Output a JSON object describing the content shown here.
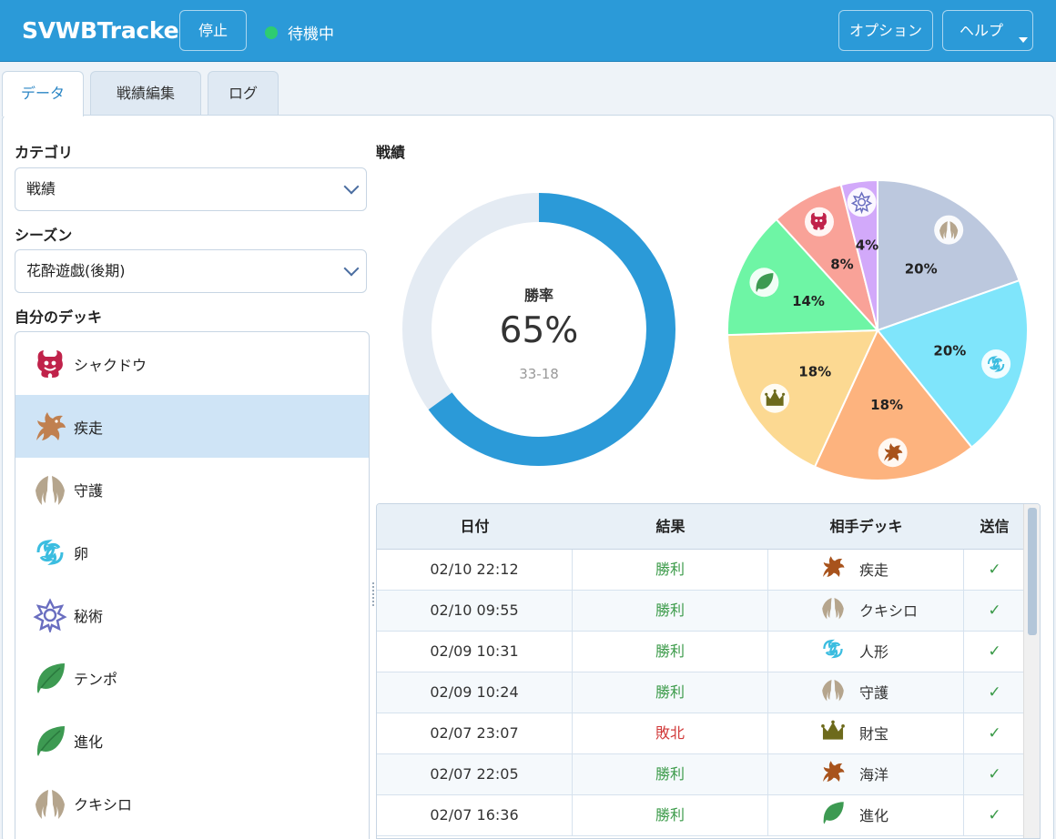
{
  "app": {
    "title": "SVWBTracker"
  },
  "header": {
    "stop_label": "停止",
    "status_text": "待機中",
    "options_label": "オプション",
    "help_label": "ヘルプ"
  },
  "tabs": [
    {
      "label": "データ",
      "active": true
    },
    {
      "label": "戦績編集",
      "active": false
    },
    {
      "label": "ログ",
      "active": false
    }
  ],
  "filters": {
    "category_label": "カテゴリ",
    "category_value": "戦績",
    "season_label": "シーズン",
    "season_value": "花酔遊戯(後期)",
    "my_deck_label": "自分のデッキ"
  },
  "decks": [
    {
      "name": "シャクドウ",
      "icon": "shadow-demon-icon",
      "selected": false
    },
    {
      "name": "疾走",
      "icon": "dragon-icon",
      "selected": true
    },
    {
      "name": "守護",
      "icon": "wings-icon",
      "selected": false
    },
    {
      "name": "卵",
      "icon": "swirl-icon",
      "selected": false
    },
    {
      "name": "秘術",
      "icon": "star-emblem-icon",
      "selected": false
    },
    {
      "name": "テンポ",
      "icon": "leaf-icon",
      "selected": false
    },
    {
      "name": "進化",
      "icon": "leaf-icon",
      "selected": false
    },
    {
      "name": "クキシロ",
      "icon": "wings-icon",
      "selected": false
    }
  ],
  "stats": {
    "section_label": "戦績",
    "winrate_label": "勝率",
    "winrate_text": "65%",
    "record_text": "33-18"
  },
  "chart_data": [
    {
      "type": "pie",
      "variant": "donut",
      "categories": [
        "win",
        "loss"
      ],
      "values": [
        65,
        35
      ],
      "colors": [
        "#2b9ad8",
        "#e4ebf3"
      ]
    },
    {
      "type": "pie",
      "categories": [
        "wings",
        "swirl",
        "dragon",
        "crown",
        "leaf",
        "demon",
        "star"
      ],
      "values": [
        20,
        20,
        18,
        18,
        14,
        8,
        4
      ],
      "labels": [
        "20%",
        "20%",
        "18%",
        "18%",
        "14%",
        "8%",
        "4%"
      ],
      "colors": [
        "#bcc8de",
        "#7fe5fb",
        "#fdb37e",
        "#fcd992",
        "#6ef5a5",
        "#f9a298",
        "#d2a9fa"
      ],
      "icons": [
        "wings-icon",
        "swirl-icon",
        "dragon-icon",
        "crown-icon",
        "leaf-icon",
        "shadow-demon-icon",
        "star-emblem-icon"
      ]
    }
  ],
  "table": {
    "headers": [
      "日付",
      "結果",
      "相手デッキ",
      "送信"
    ],
    "rows": [
      {
        "date": "02/10 22:12",
        "result": "勝利",
        "win": true,
        "opponent": "疾走",
        "icon": "dragon-icon",
        "sent": "✓"
      },
      {
        "date": "02/10 09:55",
        "result": "勝利",
        "win": true,
        "opponent": "クキシロ",
        "icon": "wings-icon",
        "sent": "✓"
      },
      {
        "date": "02/09 10:31",
        "result": "勝利",
        "win": true,
        "opponent": "人形",
        "icon": "swirl-icon",
        "sent": "✓"
      },
      {
        "date": "02/09 10:24",
        "result": "勝利",
        "win": true,
        "opponent": "守護",
        "icon": "wings-icon",
        "sent": "✓"
      },
      {
        "date": "02/07 23:07",
        "result": "敗北",
        "win": false,
        "opponent": "財宝",
        "icon": "crown-icon",
        "sent": "✓"
      },
      {
        "date": "02/07 22:05",
        "result": "勝利",
        "win": true,
        "opponent": "海洋",
        "icon": "dragon-icon",
        "sent": "✓"
      },
      {
        "date": "02/07 16:36",
        "result": "勝利",
        "win": true,
        "opponent": "進化",
        "icon": "leaf-icon",
        "sent": "✓"
      }
    ]
  }
}
